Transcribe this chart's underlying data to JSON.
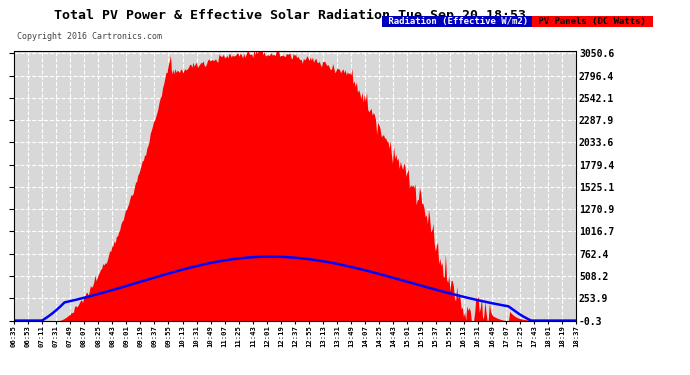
{
  "title": "Total PV Power & Effective Solar Radiation Tue Sep 20 18:53",
  "copyright_text": "Copyright 2016 Cartronics.com",
  "legend_radiation": "Radiation (Effective W/m2)",
  "legend_pv": "PV Panels (DC Watts)",
  "y_ticks": [
    -0.3,
    253.9,
    508.2,
    762.4,
    1016.7,
    1270.9,
    1525.1,
    1779.4,
    2033.6,
    2287.9,
    2542.1,
    2796.4,
    3050.6
  ],
  "x_labels": [
    "06:35",
    "06:53",
    "07:11",
    "07:31",
    "07:49",
    "08:07",
    "08:25",
    "08:43",
    "09:01",
    "09:19",
    "09:37",
    "09:55",
    "10:13",
    "10:31",
    "10:49",
    "11:07",
    "11:25",
    "11:43",
    "12:01",
    "12:19",
    "12:37",
    "12:55",
    "13:13",
    "13:31",
    "13:49",
    "14:07",
    "14:25",
    "14:43",
    "15:01",
    "15:19",
    "15:37",
    "15:55",
    "16:13",
    "16:31",
    "16:49",
    "17:07",
    "17:25",
    "17:43",
    "18:01",
    "18:19",
    "18:37"
  ],
  "bg_color": "#ffffff",
  "plot_bg_color": "#d8d8d8",
  "grid_color": "#ffffff",
  "pv_fill_color": "#ff0000",
  "radiation_line_color": "#0000ff",
  "title_color": "#000000",
  "y_min": -0.3,
  "y_max": 3050.6,
  "radiation_peak": 730,
  "pv_peak": 3050.6,
  "n_points": 500
}
